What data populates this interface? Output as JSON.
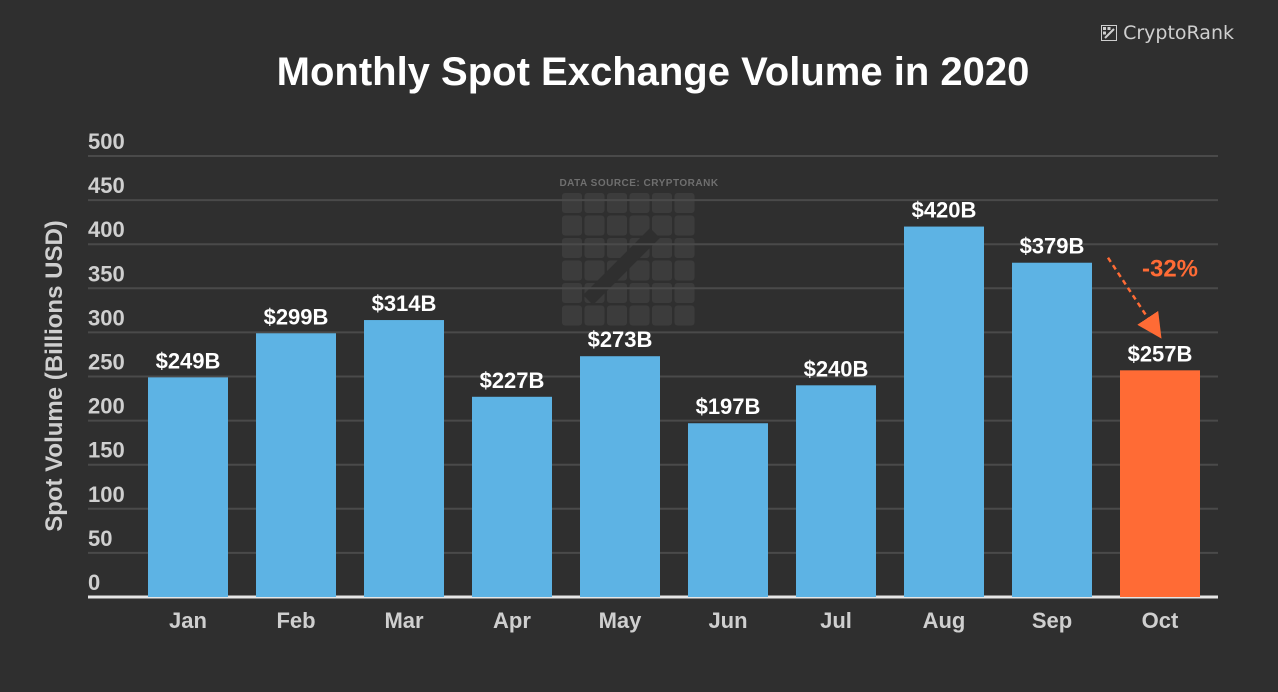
{
  "brand": {
    "name": "CryptoRank",
    "icon": "cryptorank-logo-icon"
  },
  "watermark": {
    "source": "DATA SOURCE: CRYPTORANK"
  },
  "chart_data": {
    "type": "bar",
    "title": "Monthly Spot Exchange Volume in 2020",
    "xlabel": "",
    "ylabel": "Spot Volume (Billions USD)",
    "ylim": [
      0,
      500
    ],
    "yticks": [
      0,
      50,
      100,
      150,
      200,
      250,
      300,
      350,
      400,
      450,
      500
    ],
    "grid": true,
    "categories": [
      "Jan",
      "Feb",
      "Mar",
      "Apr",
      "May",
      "Jun",
      "Jul",
      "Aug",
      "Sep",
      "Oct"
    ],
    "values": [
      249,
      299,
      314,
      227,
      273,
      197,
      240,
      420,
      379,
      257
    ],
    "data_labels": [
      "$249B",
      "$299B",
      "$314B",
      "$227B",
      "$273B",
      "$197B",
      "$240B",
      "$420B",
      "$379B",
      "$257B"
    ],
    "colors": {
      "bar": "#5db3e4",
      "highlight": "#ff6b35",
      "grid": "#4a4a4a",
      "axis": "#e6e6e6",
      "background": "#2f2f2f"
    },
    "highlight_index": 9,
    "annotation": {
      "text": "-32%",
      "from": "Sep",
      "to": "Oct"
    }
  }
}
